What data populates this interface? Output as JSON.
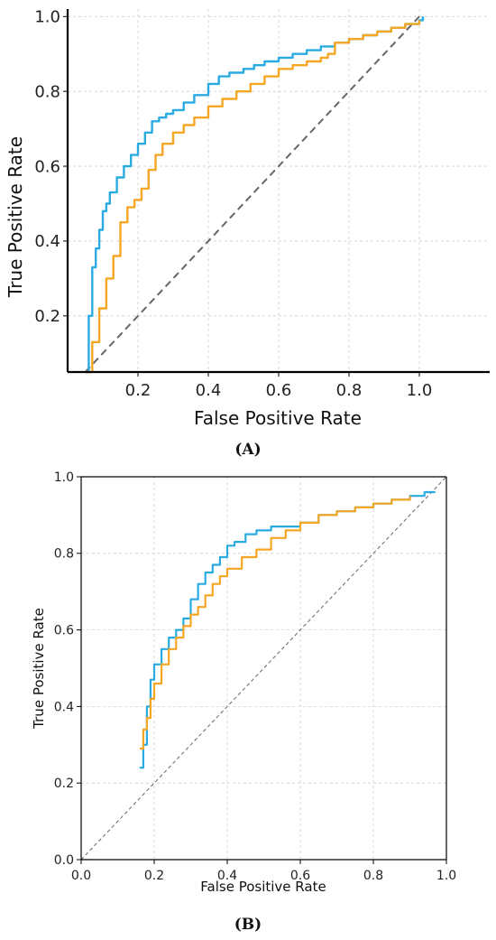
{
  "panels": {
    "a_caption": "(A)",
    "b_caption": "(B)"
  },
  "chart_data": [
    {
      "type": "line",
      "panel": "A",
      "xlabel": "False Positive Rate",
      "ylabel": "True Positive Rate",
      "xlim": [
        0.0,
        1.2
      ],
      "ylim": [
        0.05,
        1.02
      ],
      "xticks": [
        0.2,
        0.4,
        0.6,
        0.8,
        1.0
      ],
      "xtick_labels": [
        "0.2",
        "0.4",
        "0.6",
        "0.8",
        "1.0"
      ],
      "yticks": [
        0.2,
        0.4,
        0.6,
        0.8,
        1.0
      ],
      "ytick_labels": [
        "0.2",
        "0.4",
        "0.6",
        "0.8",
        "1.0"
      ],
      "grid": true,
      "legend": "none",
      "diagonal": {
        "from": [
          0.0,
          0.0
        ],
        "to": [
          1.0,
          1.0
        ],
        "color": "#666666",
        "style": "dashed"
      },
      "series": [
        {
          "color": "#29abe2",
          "x": [
            0.05,
            0.06,
            0.07,
            0.08,
            0.09,
            0.1,
            0.11,
            0.12,
            0.14,
            0.16,
            0.18,
            0.2,
            0.22,
            0.24,
            0.26,
            0.28,
            0.3,
            0.33,
            0.36,
            0.4,
            0.43,
            0.46,
            0.5,
            0.53,
            0.56,
            0.6,
            0.64,
            0.68,
            0.72,
            0.76,
            0.8,
            0.84,
            0.88,
            0.92,
            0.96,
            1.0,
            1.01
          ],
          "y": [
            0.05,
            0.2,
            0.33,
            0.38,
            0.43,
            0.48,
            0.5,
            0.53,
            0.57,
            0.6,
            0.63,
            0.66,
            0.69,
            0.72,
            0.73,
            0.74,
            0.75,
            0.77,
            0.79,
            0.82,
            0.84,
            0.85,
            0.86,
            0.87,
            0.88,
            0.89,
            0.9,
            0.91,
            0.92,
            0.93,
            0.94,
            0.95,
            0.96,
            0.97,
            0.98,
            0.99,
            1.0
          ]
        },
        {
          "color": "#f5a623",
          "x": [
            0.05,
            0.07,
            0.09,
            0.11,
            0.13,
            0.15,
            0.17,
            0.19,
            0.21,
            0.23,
            0.25,
            0.27,
            0.3,
            0.33,
            0.36,
            0.4,
            0.44,
            0.48,
            0.52,
            0.56,
            0.6,
            0.64,
            0.68,
            0.72,
            0.74,
            0.76,
            0.8,
            0.84,
            0.88,
            0.92,
            0.96,
            1.0
          ],
          "y": [
            0.05,
            0.13,
            0.22,
            0.3,
            0.36,
            0.45,
            0.49,
            0.51,
            0.54,
            0.59,
            0.63,
            0.66,
            0.69,
            0.71,
            0.73,
            0.76,
            0.78,
            0.8,
            0.82,
            0.84,
            0.86,
            0.87,
            0.88,
            0.89,
            0.9,
            0.93,
            0.94,
            0.95,
            0.96,
            0.97,
            0.98,
            0.99
          ]
        }
      ]
    },
    {
      "type": "line",
      "panel": "B",
      "xlabel": "False Positive Rate",
      "ylabel": "True Positive Rate",
      "xlim": [
        0.0,
        1.0
      ],
      "ylim": [
        0.0,
        1.0
      ],
      "xticks": [
        0.0,
        0.2,
        0.4,
        0.6,
        0.8,
        1.0
      ],
      "xtick_labels": [
        "0.0",
        "0.2",
        "0.4",
        "0.6",
        "0.8",
        "1.0"
      ],
      "yticks": [
        0.0,
        0.2,
        0.4,
        0.6,
        0.8,
        1.0
      ],
      "ytick_labels": [
        "0.0",
        "0.2",
        "0.4",
        "0.6",
        "0.8",
        "1.0"
      ],
      "grid": true,
      "legend": "none",
      "diagonal": {
        "from": [
          0.0,
          0.0
        ],
        "to": [
          1.0,
          1.0
        ],
        "color": "#666666",
        "style": "dashed"
      },
      "series": [
        {
          "color": "#29abe2",
          "x": [
            0.16,
            0.17,
            0.18,
            0.19,
            0.2,
            0.22,
            0.24,
            0.26,
            0.28,
            0.3,
            0.32,
            0.34,
            0.36,
            0.38,
            0.4,
            0.42,
            0.45,
            0.48,
            0.52,
            0.56,
            0.6,
            0.65,
            0.7,
            0.75,
            0.8,
            0.85,
            0.9,
            0.94,
            0.97
          ],
          "y": [
            0.24,
            0.3,
            0.4,
            0.47,
            0.51,
            0.55,
            0.58,
            0.6,
            0.63,
            0.68,
            0.72,
            0.75,
            0.77,
            0.79,
            0.82,
            0.83,
            0.85,
            0.86,
            0.87,
            0.87,
            0.88,
            0.9,
            0.91,
            0.92,
            0.93,
            0.94,
            0.95,
            0.96,
            0.96
          ]
        },
        {
          "color": "#f5a623",
          "x": [
            0.16,
            0.17,
            0.18,
            0.19,
            0.2,
            0.22,
            0.24,
            0.26,
            0.28,
            0.3,
            0.32,
            0.34,
            0.36,
            0.38,
            0.4,
            0.44,
            0.48,
            0.52,
            0.56,
            0.6,
            0.65,
            0.7,
            0.75,
            0.8,
            0.85,
            0.9
          ],
          "y": [
            0.29,
            0.34,
            0.37,
            0.42,
            0.46,
            0.51,
            0.55,
            0.58,
            0.61,
            0.64,
            0.66,
            0.69,
            0.72,
            0.74,
            0.76,
            0.79,
            0.81,
            0.84,
            0.86,
            0.88,
            0.9,
            0.91,
            0.92,
            0.93,
            0.94,
            0.95
          ]
        }
      ]
    }
  ]
}
